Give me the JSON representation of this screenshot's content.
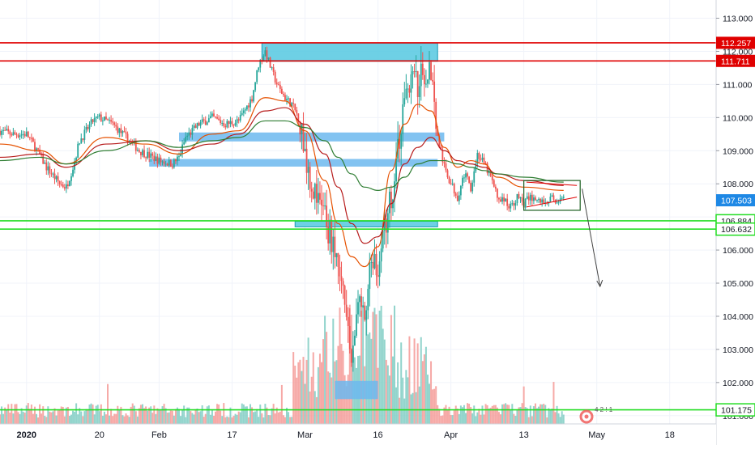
{
  "chart_data": {
    "type": "candlestick",
    "colors": {
      "up": "#26a69a",
      "down": "#ef5350",
      "upVol": "#7fcdc3",
      "downVol": "#f59a97",
      "ma_fast": "#e65100",
      "ma_mid": "#b71c1c",
      "ma_slow": "#2e7d32",
      "zone": "#55c8e0",
      "zone_edge": "#1a9bb5",
      "zone_light": "#6cb8ef",
      "resistance": "#e00000",
      "support": "#22dd22",
      "price_tag": "#1e88e5",
      "arrow": "#444444",
      "grid": "#f0f3fa",
      "axis_text": "#131722"
    },
    "y_axis": {
      "min": 100.75,
      "max": 113.55,
      "ticks": [
        "101.000",
        "102.000",
        "103.000",
        "104.000",
        "105.000",
        "106.000",
        "107.000",
        "108.000",
        "109.000",
        "110.000",
        "111.000",
        "112.000",
        "113.000"
      ]
    },
    "x_axis": {
      "labels": [
        {
          "t": 4,
          "label": "2020"
        },
        {
          "t": 15,
          "label": "20"
        },
        {
          "t": 24,
          "label": "Feb"
        },
        {
          "t": 35,
          "label": "17"
        },
        {
          "t": 46,
          "label": "Mar"
        },
        {
          "t": 57,
          "label": "16"
        },
        {
          "t": 68,
          "label": "Apr"
        },
        {
          "t": 79,
          "label": "13"
        },
        {
          "t": 90,
          "label": "May"
        },
        {
          "t": 101,
          "label": "18"
        }
      ],
      "t_min": 0,
      "t_max": 108
    },
    "price_series": [
      {
        "t": 0,
        "close": 109.6
      },
      {
        "t": 2,
        "close": 109.5
      },
      {
        "t": 4,
        "close": 109.5
      },
      {
        "t": 5,
        "close": 109.2
      },
      {
        "t": 7,
        "close": 108.5
      },
      {
        "t": 9,
        "close": 108.0
      },
      {
        "t": 10,
        "close": 107.9
      },
      {
        "t": 11,
        "close": 108.5
      },
      {
        "t": 12,
        "close": 109.3
      },
      {
        "t": 14,
        "close": 109.9
      },
      {
        "t": 15,
        "close": 110.0
      },
      {
        "t": 17,
        "close": 109.8
      },
      {
        "t": 19,
        "close": 109.4
      },
      {
        "t": 21,
        "close": 109.0
      },
      {
        "t": 24,
        "close": 108.7
      },
      {
        "t": 26,
        "close": 108.6
      },
      {
        "t": 27,
        "close": 108.8
      },
      {
        "t": 28,
        "close": 109.4
      },
      {
        "t": 30,
        "close": 109.8
      },
      {
        "t": 32,
        "close": 110.0
      },
      {
        "t": 34,
        "close": 109.8
      },
      {
        "t": 36,
        "close": 109.9
      },
      {
        "t": 38,
        "close": 110.6
      },
      {
        "t": 39,
        "close": 111.6
      },
      {
        "t": 40,
        "close": 112.0
      },
      {
        "t": 41,
        "close": 111.4
      },
      {
        "t": 42,
        "close": 110.9
      },
      {
        "t": 43,
        "close": 110.6
      },
      {
        "t": 44,
        "close": 110.4
      },
      {
        "t": 45,
        "close": 110.0
      },
      {
        "t": 46,
        "close": 109.0
      },
      {
        "t": 47,
        "close": 108.0
      },
      {
        "t": 48,
        "close": 107.4
      },
      {
        "t": 49,
        "close": 107.0
      },
      {
        "t": 50,
        "close": 106.3
      },
      {
        "t": 51,
        "close": 105.5
      },
      {
        "t": 52,
        "close": 104.2
      },
      {
        "t": 53,
        "close": 102.6
      },
      {
        "t": 54,
        "close": 104.5
      },
      {
        "t": 55,
        "close": 104.0
      },
      {
        "t": 56,
        "close": 105.8
      },
      {
        "t": 57,
        "close": 105.5
      },
      {
        "t": 58,
        "close": 106.6
      },
      {
        "t": 59,
        "close": 107.6
      },
      {
        "t": 60,
        "close": 108.9
      },
      {
        "t": 61,
        "close": 110.6
      },
      {
        "t": 62,
        "close": 111.2
      },
      {
        "t": 63,
        "close": 111.0
      },
      {
        "t": 64,
        "close": 111.4
      },
      {
        "t": 65,
        "close": 111.5
      },
      {
        "t": 66,
        "close": 109.4
      },
      {
        "t": 67,
        "close": 108.5
      },
      {
        "t": 68,
        "close": 108.0
      },
      {
        "t": 69,
        "close": 107.6
      },
      {
        "t": 70,
        "close": 108.3
      },
      {
        "t": 71,
        "close": 107.9
      },
      {
        "t": 72,
        "close": 108.9
      },
      {
        "t": 73,
        "close": 108.6
      },
      {
        "t": 74,
        "close": 108.2
      },
      {
        "t": 75,
        "close": 107.6
      },
      {
        "t": 76,
        "close": 107.5
      },
      {
        "t": 77,
        "close": 107.3
      },
      {
        "t": 78,
        "close": 107.6
      },
      {
        "t": 79,
        "close": 107.4
      },
      {
        "t": 80,
        "close": 107.6
      },
      {
        "t": 81,
        "close": 107.5
      },
      {
        "t": 82,
        "close": 107.45
      },
      {
        "t": 83,
        "close": 107.55
      },
      {
        "t": 84,
        "close": 107.5
      },
      {
        "t": 85,
        "close": 107.503
      }
    ],
    "moving_averages": [
      {
        "key": "ma_fast",
        "points": [
          [
            0,
            109.2
          ],
          [
            6,
            109.0
          ],
          [
            10,
            108.6
          ],
          [
            16,
            109.4
          ],
          [
            22,
            109.2
          ],
          [
            27,
            108.9
          ],
          [
            32,
            109.5
          ],
          [
            36,
            109.6
          ],
          [
            40,
            110.6
          ],
          [
            43,
            110.5
          ],
          [
            46,
            109.6
          ],
          [
            49,
            108.1
          ],
          [
            51,
            106.8
          ],
          [
            53,
            105.8
          ],
          [
            55,
            105.5
          ],
          [
            57,
            106.1
          ],
          [
            59,
            108.4
          ],
          [
            61,
            109.8
          ],
          [
            63,
            110.4
          ],
          [
            65,
            110.2
          ],
          [
            67,
            109.1
          ],
          [
            69,
            108.5
          ],
          [
            71,
            108.7
          ],
          [
            73,
            108.6
          ],
          [
            75,
            108.2
          ],
          [
            79,
            107.9
          ],
          [
            85,
            107.8
          ]
        ]
      },
      {
        "key": "ma_mid",
        "points": [
          [
            0,
            108.8
          ],
          [
            6,
            108.9
          ],
          [
            10,
            108.5
          ],
          [
            16,
            109.2
          ],
          [
            22,
            109.3
          ],
          [
            27,
            109.0
          ],
          [
            32,
            109.2
          ],
          [
            36,
            109.5
          ],
          [
            40,
            110.2
          ],
          [
            43,
            110.3
          ],
          [
            46,
            109.8
          ],
          [
            49,
            108.9
          ],
          [
            51,
            107.9
          ],
          [
            53,
            106.8
          ],
          [
            55,
            106.2
          ],
          [
            57,
            106.4
          ],
          [
            59,
            107.4
          ],
          [
            61,
            108.6
          ],
          [
            63,
            109.1
          ],
          [
            65,
            109.4
          ],
          [
            67,
            109.0
          ],
          [
            69,
            108.7
          ],
          [
            71,
            108.6
          ],
          [
            73,
            108.5
          ],
          [
            75,
            108.3
          ],
          [
            79,
            108.1
          ],
          [
            85,
            107.95
          ]
        ]
      },
      {
        "key": "ma_slow",
        "points": [
          [
            0,
            108.7
          ],
          [
            6,
            108.8
          ],
          [
            10,
            108.6
          ],
          [
            16,
            109.0
          ],
          [
            22,
            109.3
          ],
          [
            27,
            109.1
          ],
          [
            32,
            109.3
          ],
          [
            36,
            109.4
          ],
          [
            40,
            109.9
          ],
          [
            43,
            109.9
          ],
          [
            46,
            109.7
          ],
          [
            49,
            109.3
          ],
          [
            51,
            108.8
          ],
          [
            53,
            108.3
          ],
          [
            55,
            107.9
          ],
          [
            57,
            107.8
          ],
          [
            59,
            107.9
          ],
          [
            61,
            108.2
          ],
          [
            63,
            108.6
          ],
          [
            65,
            108.7
          ],
          [
            67,
            108.7
          ],
          [
            69,
            108.6
          ],
          [
            71,
            108.5
          ],
          [
            73,
            108.4
          ],
          [
            75,
            108.3
          ],
          [
            79,
            108.2
          ],
          [
            85,
            108.05
          ]
        ]
      }
    ],
    "levels": [
      {
        "price": 112.257,
        "label": "112.257",
        "kind": "resistance"
      },
      {
        "price": 111.711,
        "label": "111.711",
        "kind": "resistance"
      },
      {
        "price": 106.884,
        "label": "106.884",
        "kind": "support"
      },
      {
        "price": 106.632,
        "label": "106.632",
        "kind": "support"
      },
      {
        "price": 101.175,
        "label": "101.175",
        "kind": "support"
      }
    ],
    "current_price": {
      "price": 107.503,
      "label": "107.503"
    },
    "zones": [
      {
        "t1": 39.5,
        "t2": 66,
        "p1": 111.7,
        "p2": 112.25,
        "kind": "zone"
      },
      {
        "t1": 27,
        "t2": 67,
        "p1": 109.28,
        "p2": 109.55,
        "kind": "zone_light"
      },
      {
        "t1": 22.5,
        "t2": 66,
        "p1": 108.52,
        "p2": 108.75,
        "kind": "zone_light"
      },
      {
        "t1": 44.5,
        "t2": 66,
        "p1": 106.7,
        "p2": 106.87,
        "kind": "zone"
      },
      {
        "t1": 50.5,
        "t2": 57,
        "p1": 101.5,
        "p2": 102.05,
        "kind": "zone_light"
      }
    ],
    "consolidation_box": {
      "t1": 79,
      "t2": 87.5,
      "p1": 107.2,
      "p2": 108.1
    },
    "triangle": {
      "upper": [
        [
          79.4,
          108.05
        ],
        [
          87,
          107.95
        ]
      ],
      "lower": [
        [
          79.4,
          107.3
        ],
        [
          87,
          107.6
        ]
      ]
    },
    "projection_arrow": [
      [
        87.8,
        107.85
      ],
      [
        90.5,
        104.9
      ]
    ],
    "watermark": "4 2 ! 1"
  }
}
